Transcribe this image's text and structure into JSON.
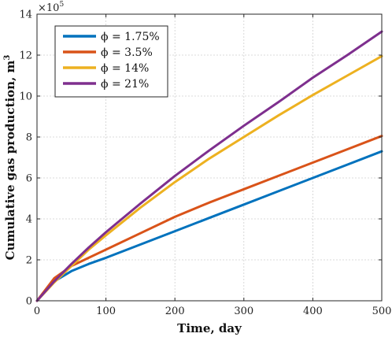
{
  "chart_data": {
    "type": "line",
    "xlabel": "Time, day",
    "ylabel": "Cumulative gas production, m",
    "ylabel_superscript": "3",
    "y_multiplier": {
      "base": "×10",
      "exponent": "5"
    },
    "xlim": [
      0,
      500
    ],
    "ylim": [
      0,
      14
    ],
    "xticks": [
      0,
      100,
      200,
      300,
      400,
      500
    ],
    "yticks": [
      0,
      2,
      4,
      6,
      8,
      10,
      12,
      14
    ],
    "grid": true,
    "legend_position": "top-left",
    "x": [
      0,
      25,
      50,
      75,
      100,
      150,
      200,
      250,
      300,
      350,
      400,
      450,
      500
    ],
    "series": [
      {
        "name": "ϕ = 1.75%",
        "color": "#0072BD",
        "values": [
          0,
          0.95,
          1.45,
          1.8,
          2.1,
          2.75,
          3.4,
          4.05,
          4.7,
          5.35,
          6.0,
          6.65,
          7.3
        ]
      },
      {
        "name": "ϕ = 3.5%",
        "color": "#D95319",
        "values": [
          0,
          1.1,
          1.7,
          2.1,
          2.5,
          3.3,
          4.1,
          4.8,
          5.45,
          6.1,
          6.75,
          7.4,
          8.05
        ]
      },
      {
        "name": "ϕ = 14%",
        "color": "#EDB120",
        "values": [
          0,
          0.9,
          1.7,
          2.5,
          3.2,
          4.55,
          5.8,
          6.95,
          8.0,
          9.05,
          10.05,
          11.0,
          11.95
        ]
      },
      {
        "name": "ϕ = 21%",
        "color": "#7E2F8E",
        "values": [
          0,
          0.95,
          1.8,
          2.6,
          3.35,
          4.75,
          6.1,
          7.35,
          8.55,
          9.7,
          10.9,
          12.0,
          13.15
        ]
      }
    ]
  }
}
